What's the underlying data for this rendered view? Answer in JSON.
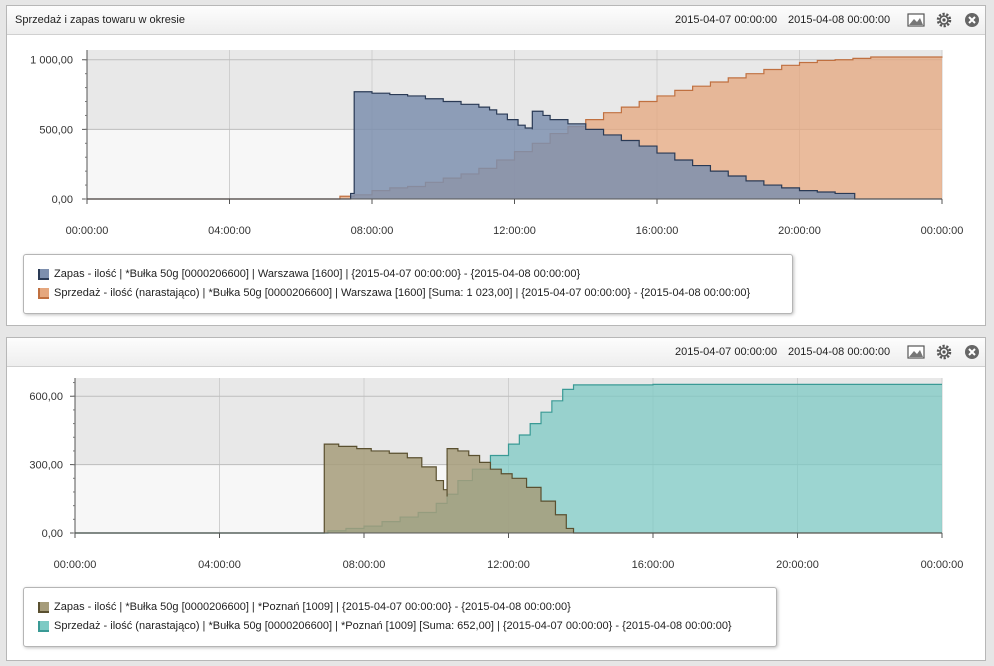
{
  "panels": [
    {
      "title": "Sprzedaż i zapas towaru w okresie",
      "date_from": "2015-04-07 00:00:00",
      "date_to": "2015-04-08 00:00:00",
      "legend": [
        "Zapas - ilość | *Bułka 50g [0000206600] | Warszawa [1600]   | {2015-04-07 00:00:00} - {2015-04-08 00:00:00}",
        "Sprzedaż - ilość (narastająco) | *Bułka 50g [0000206600] | Warszawa [1600]   [Suma: 1 023,00] | {2015-04-07 00:00:00} - {2015-04-08 00:00:00}"
      ]
    },
    {
      "title": "",
      "date_from": "2015-04-07 00:00:00",
      "date_to": "2015-04-08 00:00:00",
      "legend": [
        "Zapas - ilość | *Bułka 50g [0000206600] | *Poznań [1009]  | {2015-04-07 00:00:00} - {2015-04-08 00:00:00}",
        "Sprzedaż - ilość (narastająco) | *Bułka 50g [0000206600] | *Poznań [1009]   [Suma: 652,00] | {2015-04-07 00:00:00} - {2015-04-08 00:00:00}"
      ]
    }
  ],
  "icons": [
    "image-export-icon",
    "gear-icon",
    "close-icon"
  ],
  "chart_data": [
    {
      "type": "area",
      "x_unit": "hours since 2015-04-07 00:00:00",
      "x_ticks": [
        "00:00:00",
        "04:00:00",
        "08:00:00",
        "12:00:00",
        "16:00:00",
        "20:00:00",
        "00:00:00"
      ],
      "xlim": [
        0,
        24
      ],
      "ylim": [
        0,
        1070
      ],
      "y_ticks": [
        "0,00",
        "500,00",
        "1 000,00"
      ],
      "y_tick_values": [
        0,
        500,
        1000
      ],
      "series": [
        {
          "name": "Zapas - ilość | *Bułka 50g [0000206600] | Warszawa [1600]",
          "color": "#7d8fae",
          "line": "#2a3a55",
          "points": [
            [
              0,
              0
            ],
            [
              7.4,
              0
            ],
            [
              7.4,
              40
            ],
            [
              7.5,
              40
            ],
            [
              7.5,
              770
            ],
            [
              8,
              760
            ],
            [
              8.5,
              750
            ],
            [
              9,
              740
            ],
            [
              9.5,
              720
            ],
            [
              10,
              700
            ],
            [
              10.5,
              680
            ],
            [
              11,
              660
            ],
            [
              11.3,
              640
            ],
            [
              11.5,
              610
            ],
            [
              11.8,
              570
            ],
            [
              12.1,
              530
            ],
            [
              12.3,
              510
            ],
            [
              12.5,
              500
            ],
            [
              12.5,
              630
            ],
            [
              12.8,
              600
            ],
            [
              13,
              570
            ],
            [
              13.5,
              540
            ],
            [
              14,
              500
            ],
            [
              14.5,
              460
            ],
            [
              15,
              420
            ],
            [
              15.5,
              380
            ],
            [
              16,
              330
            ],
            [
              16.5,
              280
            ],
            [
              17,
              240
            ],
            [
              17.5,
              200
            ],
            [
              18,
              165
            ],
            [
              18.5,
              130
            ],
            [
              19,
              100
            ],
            [
              19.5,
              80
            ],
            [
              20,
              60
            ],
            [
              20.5,
              50
            ],
            [
              21,
              40
            ],
            [
              21.5,
              40
            ],
            [
              21.55,
              0
            ],
            [
              24,
              0
            ]
          ]
        },
        {
          "name": "Sprzedaż - ilość (narastająco) | *Bułka 50g [0000206600] | Warszawa [1600]",
          "color": "#e5a77e",
          "line": "#c07040",
          "points": [
            [
              0,
              0
            ],
            [
              7,
              0
            ],
            [
              7.1,
              20
            ],
            [
              7.5,
              30
            ],
            [
              8,
              60
            ],
            [
              8.5,
              80
            ],
            [
              9,
              90
            ],
            [
              9.5,
              120
            ],
            [
              10,
              150
            ],
            [
              10.5,
              180
            ],
            [
              11,
              220
            ],
            [
              11.5,
              280
            ],
            [
              12,
              340
            ],
            [
              12.5,
              400
            ],
            [
              13,
              470
            ],
            [
              13.5,
              520
            ],
            [
              14,
              570
            ],
            [
              14.5,
              620
            ],
            [
              15,
              660
            ],
            [
              15.5,
              700
            ],
            [
              16,
              740
            ],
            [
              16.5,
              780
            ],
            [
              17,
              810
            ],
            [
              17.5,
              840
            ],
            [
              18,
              870
            ],
            [
              18.5,
              900
            ],
            [
              19,
              930
            ],
            [
              19.5,
              960
            ],
            [
              20,
              980
            ],
            [
              20.5,
              995
            ],
            [
              21,
              1000
            ],
            [
              21.5,
              1010
            ],
            [
              22,
              1020
            ],
            [
              24,
              1023
            ]
          ]
        }
      ]
    },
    {
      "type": "area",
      "x_unit": "hours since 2015-04-07 00:00:00",
      "x_ticks": [
        "00:00:00",
        "04:00:00",
        "08:00:00",
        "12:00:00",
        "16:00:00",
        "20:00:00",
        "00:00:00"
      ],
      "xlim": [
        0,
        24
      ],
      "ylim": [
        0,
        680
      ],
      "y_ticks": [
        "0,00",
        "300,00",
        "600,00"
      ],
      "y_tick_values": [
        0,
        300,
        600
      ],
      "series": [
        {
          "name": "Zapas - ilość | *Bułka 50g [0000206600] | *Poznań [1009]",
          "color": "#a69c7a",
          "line": "#5a5030",
          "points": [
            [
              0,
              0
            ],
            [
              6.5,
              0
            ],
            [
              6.9,
              0
            ],
            [
              6.9,
              390
            ],
            [
              7.3,
              380
            ],
            [
              7.8,
              370
            ],
            [
              8.2,
              360
            ],
            [
              8.7,
              350
            ],
            [
              9.2,
              330
            ],
            [
              9.6,
              290
            ],
            [
              10,
              230
            ],
            [
              10.2,
              190
            ],
            [
              10.3,
              160
            ],
            [
              10.3,
              370
            ],
            [
              10.6,
              360
            ],
            [
              10.9,
              340
            ],
            [
              11.2,
              310
            ],
            [
              11.5,
              280
            ],
            [
              11.8,
              260
            ],
            [
              12.1,
              240
            ],
            [
              12.5,
              200
            ],
            [
              12.9,
              140
            ],
            [
              13.3,
              80
            ],
            [
              13.6,
              20
            ],
            [
              13.8,
              0
            ],
            [
              24,
              0
            ]
          ]
        },
        {
          "name": "Sprzedaż - ilość (narastająco) | *Bułka 50g [0000206600] | *Poznań [1009]",
          "color": "#7ecac4",
          "line": "#3a9a95",
          "points": [
            [
              0,
              0
            ],
            [
              6.8,
              0
            ],
            [
              7,
              10
            ],
            [
              7.5,
              20
            ],
            [
              8,
              30
            ],
            [
              8.5,
              50
            ],
            [
              9,
              70
            ],
            [
              9.5,
              90
            ],
            [
              10,
              130
            ],
            [
              10.3,
              170
            ],
            [
              10.6,
              230
            ],
            [
              11,
              280
            ],
            [
              11.5,
              340
            ],
            [
              12,
              390
            ],
            [
              12.3,
              430
            ],
            [
              12.6,
              480
            ],
            [
              12.9,
              530
            ],
            [
              13.2,
              580
            ],
            [
              13.5,
              630
            ],
            [
              13.8,
              650
            ],
            [
              16,
              652
            ],
            [
              24,
              652
            ]
          ]
        }
      ]
    }
  ]
}
